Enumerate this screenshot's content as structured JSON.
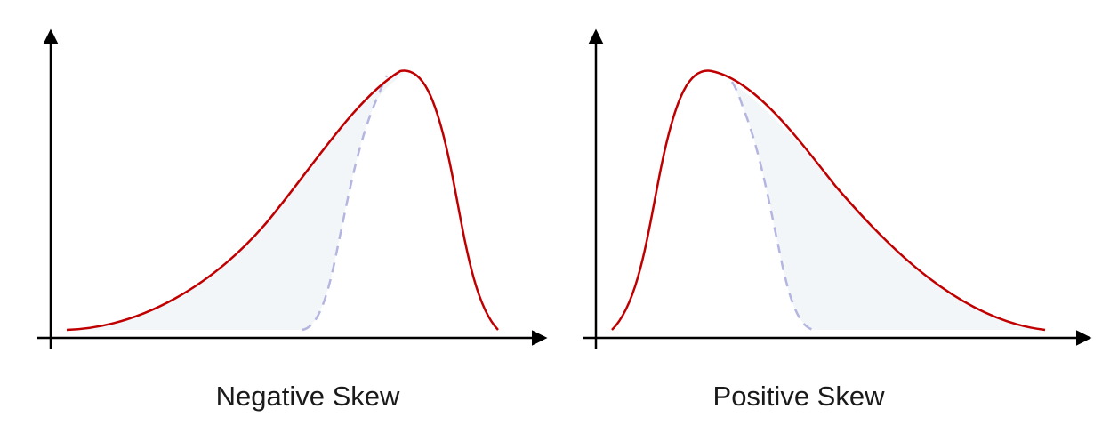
{
  "panels": [
    {
      "caption": "Negative Skew",
      "curve_color": "#c00000",
      "reference_curve_color": "#b4b6e0",
      "shaded_area_color": "#f3f6f9"
    },
    {
      "caption": "Positive Skew",
      "curve_color": "#c00000",
      "reference_curve_color": "#b4b6e0",
      "shaded_area_color": "#f3f6f9"
    }
  ],
  "axis_color": "#000000"
}
